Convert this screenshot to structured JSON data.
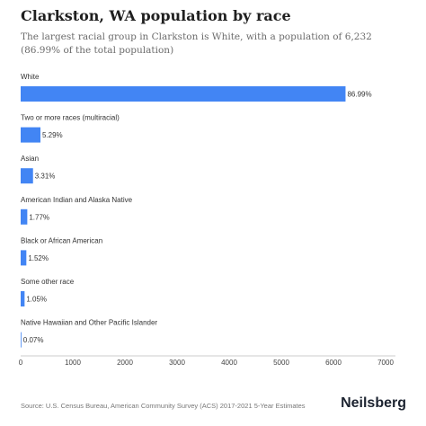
{
  "title": "Clarkston, WA population by race",
  "subtitle": "The largest racial group in Clarkston is White, with a population of 6,232 (86.99% of the total population)",
  "source": "Source: U.S. Census Bureau, American Community Survey (ACS) 2017-2021 5-Year Estimates",
  "brand": "Neilsberg",
  "colors": {
    "bar": "#4285f4",
    "axis": "#cccccc"
  },
  "chart_data": {
    "type": "bar",
    "orientation": "horizontal",
    "categories": [
      "White",
      "Two or more races (multiracial)",
      "Asian",
      "American Indian and Alaska Native",
      "Black or African American",
      "Some other race",
      "Native Hawaiian and Other Pacific Islander"
    ],
    "values": [
      6232,
      379,
      237,
      127,
      109,
      75,
      5
    ],
    "data_labels": [
      "86.99%",
      "5.29%",
      "3.31%",
      "1.77%",
      "1.52%",
      "1.05%",
      "0.07%"
    ],
    "x_ticks": [
      0,
      1000,
      2000,
      3000,
      4000,
      5000,
      6000,
      7000
    ],
    "xlim": [
      0,
      7000
    ],
    "xlabel": "",
    "ylabel": ""
  }
}
